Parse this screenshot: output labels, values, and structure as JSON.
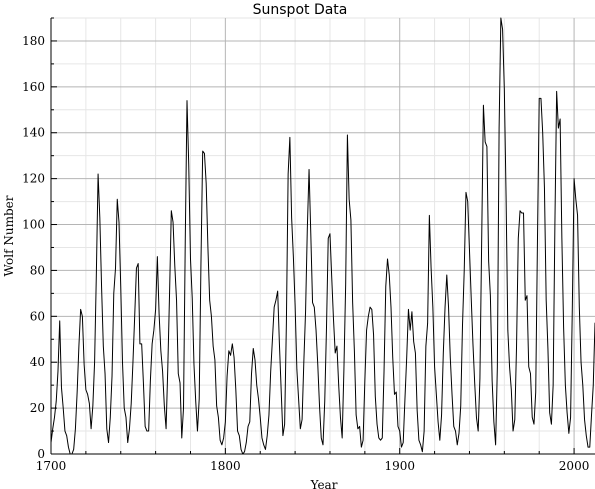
{
  "chart_data": {
    "type": "line",
    "title": "Sunspot Data",
    "xlabel": "Year",
    "ylabel": "Wolf Number",
    "xlim": [
      1700,
      2012
    ],
    "ylim": [
      0,
      190
    ],
    "grid": true,
    "x_ticks": [
      1700,
      1800,
      1900,
      2000
    ],
    "y_ticks": [
      0,
      20,
      40,
      60,
      80,
      100,
      120,
      140,
      160,
      180
    ],
    "series": [
      {
        "x_start": 1700,
        "x_step": 1,
        "values": [
          5,
          11,
          16,
          23,
          36,
          58,
          29,
          20,
          10,
          8,
          3,
          0,
          0,
          2,
          11,
          27,
          47,
          63,
          60,
          39,
          28,
          26,
          22,
          11,
          21,
          40,
          78,
          122,
          103,
          73,
          47,
          35,
          11,
          5,
          16,
          34,
          70,
          81,
          111,
          101,
          73,
          40,
          20,
          16,
          5,
          11,
          22,
          40,
          60,
          81,
          83,
          48,
          48,
          31,
          12,
          10,
          10,
          32,
          48,
          54,
          63,
          86,
          61,
          45,
          36,
          21,
          11,
          38,
          70,
          106,
          101,
          82,
          67,
          35,
          31,
          7,
          20,
          93,
          154,
          126,
          85,
          68,
          39,
          23,
          10,
          24,
          83,
          132,
          131,
          118,
          90,
          67,
          60,
          47,
          41,
          21,
          16,
          6,
          4,
          7,
          14,
          34,
          45,
          43,
          48,
          42,
          28,
          10,
          8,
          2,
          0,
          1,
          5,
          12,
          14,
          35,
          46,
          41,
          30,
          24,
          16,
          7,
          4,
          2,
          8,
          17,
          36,
          50,
          64,
          67,
          71,
          48,
          28,
          8,
          13,
          57,
          122,
          138,
          103,
          86,
          65,
          37,
          24,
          11,
          15,
          40,
          62,
          98,
          124,
          96,
          66,
          64,
          54,
          39,
          21,
          7,
          4,
          23,
          55,
          94,
          96,
          77,
          59,
          44,
          47,
          30,
          16,
          7,
          37,
          74,
          139,
          111,
          102,
          66,
          45,
          17,
          11,
          12,
          3,
          6,
          32,
          54,
          60,
          64,
          63,
          52,
          25,
          13,
          7,
          6,
          7,
          36,
          73,
          85,
          78,
          64,
          42,
          26,
          27,
          12,
          10,
          3,
          5,
          24,
          42,
          63,
          54,
          62,
          49,
          44,
          19,
          6,
          4,
          1,
          10,
          47,
          57,
          104,
          81,
          64,
          38,
          26,
          14,
          6,
          17,
          44,
          64,
          78,
          64,
          42,
          26,
          12,
          10,
          4,
          9,
          21,
          56,
          80,
          114,
          110,
          89,
          68,
          48,
          31,
          16,
          10,
          33,
          93,
          152,
          136,
          134,
          84,
          69,
          32,
          14,
          4,
          38,
          142,
          190,
          185,
          159,
          112,
          54,
          38,
          28,
          10,
          15,
          47,
          94,
          106,
          105,
          105,
          67,
          69,
          38,
          35,
          16,
          13,
          27,
          93,
          155,
          155,
          140,
          116,
          67,
          46,
          18,
          13,
          30,
          100,
          158,
          142,
          146,
          94,
          55,
          30,
          18,
          9,
          16,
          64,
          120,
          111,
          104,
          64,
          40,
          30,
          15,
          8,
          3,
          3,
          17,
          30,
          57,
          58
        ]
      }
    ]
  }
}
